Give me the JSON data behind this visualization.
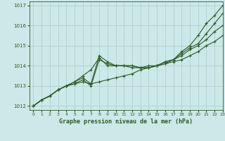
{
  "title": "Graphe pression niveau de la mer (hPa)",
  "bg_color": "#cce8e8",
  "grid_color": "#b0d0d0",
  "line_color": "#2d5a27",
  "text_color": "#2d5a27",
  "xlim": [
    -0.5,
    23
  ],
  "ylim": [
    1011.8,
    1017.2
  ],
  "yticks": [
    1012,
    1013,
    1014,
    1015,
    1016,
    1017
  ],
  "xticks": [
    0,
    1,
    2,
    3,
    4,
    5,
    6,
    7,
    8,
    9,
    10,
    11,
    12,
    13,
    14,
    15,
    16,
    17,
    18,
    19,
    20,
    21,
    22,
    23
  ],
  "series": [
    [
      1012.0,
      1012.3,
      1012.5,
      1012.8,
      1013.0,
      1013.1,
      1013.2,
      1013.1,
      1013.2,
      1013.3,
      1013.4,
      1013.5,
      1013.6,
      1013.8,
      1013.9,
      1014.0,
      1014.1,
      1014.2,
      1014.3,
      1014.5,
      1014.7,
      1015.0,
      1015.2,
      1015.5
    ],
    [
      1012.0,
      1012.3,
      1012.5,
      1012.8,
      1013.0,
      1013.2,
      1013.5,
      1013.8,
      1014.4,
      1014.0,
      1014.0,
      1014.0,
      1014.0,
      1013.9,
      1013.9,
      1014.0,
      1014.2,
      1014.3,
      1014.7,
      1015.0,
      1015.5,
      1016.1,
      1016.5,
      1017.0
    ],
    [
      1012.0,
      1012.3,
      1012.5,
      1012.8,
      1013.0,
      1013.2,
      1013.4,
      1013.1,
      1014.5,
      1014.2,
      1014.0,
      1014.0,
      1014.0,
      1013.9,
      1014.0,
      1014.0,
      1014.2,
      1014.3,
      1014.6,
      1014.9,
      1015.1,
      1015.6,
      1016.1,
      1016.6
    ],
    [
      1012.0,
      1012.3,
      1012.5,
      1012.8,
      1013.0,
      1013.1,
      1013.3,
      1013.0,
      1014.3,
      1014.1,
      1014.0,
      1014.0,
      1013.9,
      1013.9,
      1013.9,
      1014.0,
      1014.1,
      1014.3,
      1014.5,
      1014.8,
      1015.0,
      1015.3,
      1015.7,
      1016.0
    ]
  ]
}
